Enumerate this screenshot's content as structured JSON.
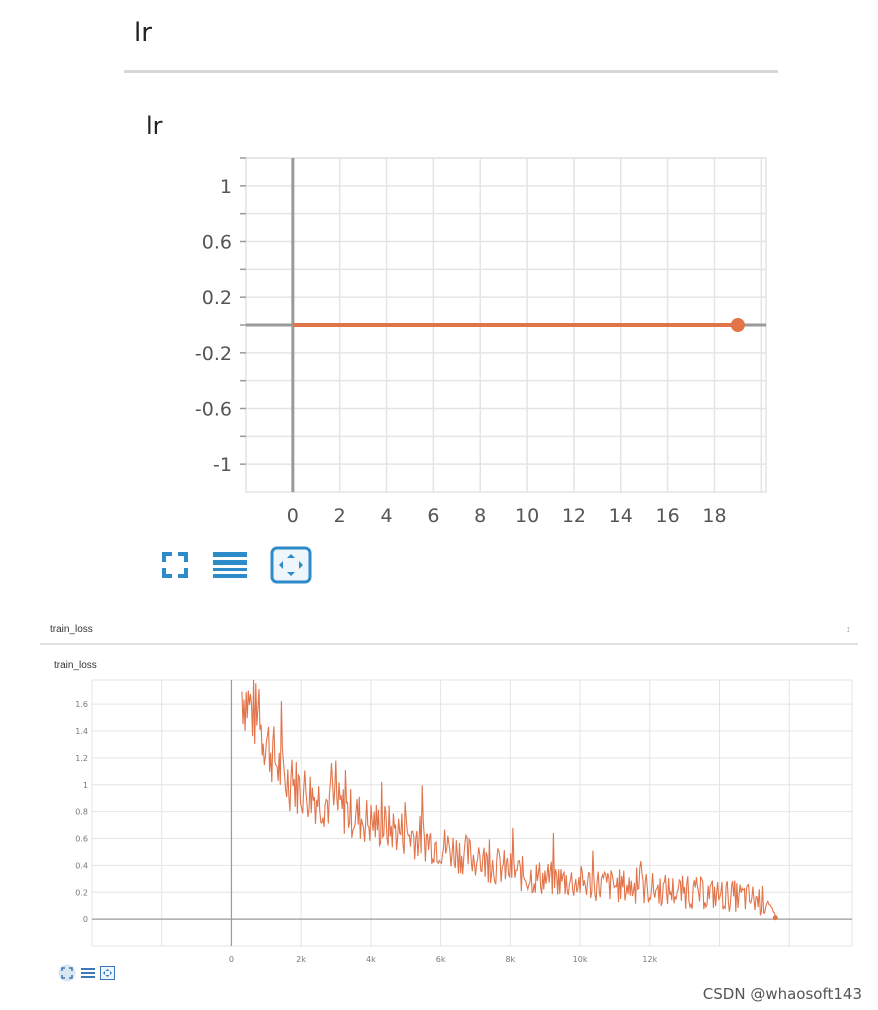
{
  "lr_panel": {
    "section_title": "lr"
  },
  "train_loss_panel": {
    "section_title": "train_loss",
    "collapse_glyph": "↕"
  },
  "watermark": "CSDN @whaosoft143",
  "colors": {
    "series": "#e2744a",
    "toolbar": "#2e8bc9",
    "grid": "#e4e4e4",
    "axis": "#9a9a9a"
  },
  "toolbar_icons": [
    "expand-icon",
    "data-table-icon",
    "fit-domain-icon"
  ],
  "chart_data": [
    {
      "type": "line",
      "title": "lr",
      "xlabel": "",
      "ylabel": "",
      "x": [
        0,
        19
      ],
      "series": [
        {
          "values": [
            0,
            0
          ]
        }
      ],
      "xlim": [
        -2,
        20.2
      ],
      "ylim": [
        -1.2,
        1.2
      ],
      "xticks": [
        "0",
        "2",
        "4",
        "6",
        "8",
        "10",
        "12",
        "14",
        "16",
        "18"
      ],
      "yticks": [
        "1",
        "0.6",
        "0.2",
        "-0.2",
        "-0.6",
        "-1"
      ],
      "grid": true,
      "legend": "none",
      "end_marker": true
    },
    {
      "type": "line",
      "title": "train_loss",
      "xlabel": "",
      "ylabel": "",
      "x_start": 300,
      "x_end": 15600,
      "approx_points": 500,
      "trend_anchors": [
        [
          300,
          1.7
        ],
        [
          800,
          1.45
        ],
        [
          1500,
          1.05
        ],
        [
          2500,
          0.9
        ],
        [
          4000,
          0.72
        ],
        [
          5500,
          0.6
        ],
        [
          7000,
          0.45
        ],
        [
          8500,
          0.32
        ],
        [
          10000,
          0.27
        ],
        [
          11500,
          0.24
        ],
        [
          13000,
          0.2
        ],
        [
          14500,
          0.17
        ],
        [
          15400,
          0.13
        ],
        [
          15600,
          0.01
        ]
      ],
      "xlim": [
        -4000,
        17800
      ],
      "ylim": [
        -0.2,
        1.78
      ],
      "xticks": [
        "0",
        "2k",
        "4k",
        "6k",
        "8k",
        "10k",
        "12k"
      ],
      "yticks": [
        "1.6",
        "1.4",
        "1.2",
        "1",
        "0.8",
        "0.6",
        "0.4",
        "0.2",
        "0"
      ],
      "grid": true,
      "legend": "none",
      "end_marker": true
    }
  ]
}
